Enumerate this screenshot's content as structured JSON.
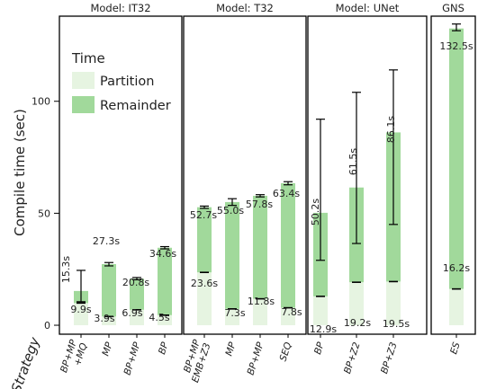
{
  "chart_data": {
    "type": "bar",
    "stacked": true,
    "ylabel": "Compile time (sec)",
    "xlabel": "Strategy",
    "ylim": [
      -4,
      138
    ],
    "yticks": [
      0,
      50,
      100
    ],
    "legend": {
      "title": "Time",
      "placement": "top-left",
      "entries": [
        {
          "label": "Partition",
          "color": "#e6f4e1"
        },
        {
          "label": "Remainder",
          "color": "#a1d99b"
        }
      ]
    },
    "series_colors": {
      "partition": "#e6f4e1",
      "remainder": "#a1d99b"
    },
    "panels": [
      {
        "title": "Model: IT32",
        "bars": [
          {
            "label": "BP+MP\n+MQ",
            "partition": 9.9,
            "remainder": 5.4,
            "partition_label": "9.9s",
            "remainder_label": "15.3s",
            "total": 15.3,
            "err": [
              10.5,
              24.5
            ]
          },
          {
            "label": "MP",
            "partition": 3.9,
            "remainder": 23.4,
            "partition_label": "3.9s",
            "remainder_label": "27.3s",
            "total": 27.3,
            "err": [
              26.5,
              28
            ]
          },
          {
            "label": "BP+MP",
            "partition": 6.9,
            "remainder": 13.9,
            "partition_label": "6.9s",
            "remainder_label": "20.8s",
            "total": 20.8,
            "err": [
              20.3,
              21.3
            ]
          },
          {
            "label": "BP",
            "partition": 4.5,
            "remainder": 30.1,
            "partition_label": "4.5s",
            "remainder_label": "34.6s",
            "total": 34.6,
            "err": [
              34.1,
              35.1
            ]
          }
        ]
      },
      {
        "title": "Model: T32",
        "bars": [
          {
            "label": "BP+MP\nEMB+Z3",
            "partition": 23.6,
            "remainder": 29.1,
            "partition_label": "23.6s",
            "remainder_label": "52.7s",
            "total": 52.7,
            "err": [
              52.2,
              53.2
            ]
          },
          {
            "label": "MP",
            "partition": 7.3,
            "remainder": 47.7,
            "partition_label": "7.3s",
            "remainder_label": "55.0s",
            "total": 55.0,
            "err": [
              53.5,
              56.5
            ]
          },
          {
            "label": "BP+MP",
            "partition": 11.8,
            "remainder": 46.0,
            "partition_label": "11.8s",
            "remainder_label": "57.8s",
            "total": 57.8,
            "err": [
              57.3,
              58.3
            ]
          },
          {
            "label": "SEQ",
            "partition": 7.8,
            "remainder": 55.6,
            "partition_label": "7.8s",
            "remainder_label": "63.4s",
            "total": 63.4,
            "err": [
              62.7,
              64.1
            ]
          }
        ]
      },
      {
        "title": "Model: UNet",
        "bars": [
          {
            "label": "BP",
            "partition": 12.9,
            "remainder": 37.3,
            "partition_label": "12.9s",
            "remainder_label": "50.2s",
            "total": 50.2,
            "err": [
              29,
              92
            ]
          },
          {
            "label": "BP+Z2",
            "partition": 19.2,
            "remainder": 42.3,
            "partition_label": "19.2s",
            "remainder_label": "61.5s",
            "total": 61.5,
            "err": [
              36.5,
              104
            ]
          },
          {
            "label": "BP+Z3",
            "partition": 19.5,
            "remainder": 66.6,
            "partition_label": "19.5s",
            "remainder_label": "86.1s",
            "total": 86.1,
            "err": [
              45,
              114
            ]
          }
        ]
      },
      {
        "title": "GNS",
        "bars": [
          {
            "label": "ES",
            "partition": 16.2,
            "remainder": 116.3,
            "partition_label": "16.2s",
            "remainder_label": "132.5s",
            "total": 132.5,
            "err": [
              131.5,
              134.5
            ]
          }
        ]
      }
    ]
  }
}
